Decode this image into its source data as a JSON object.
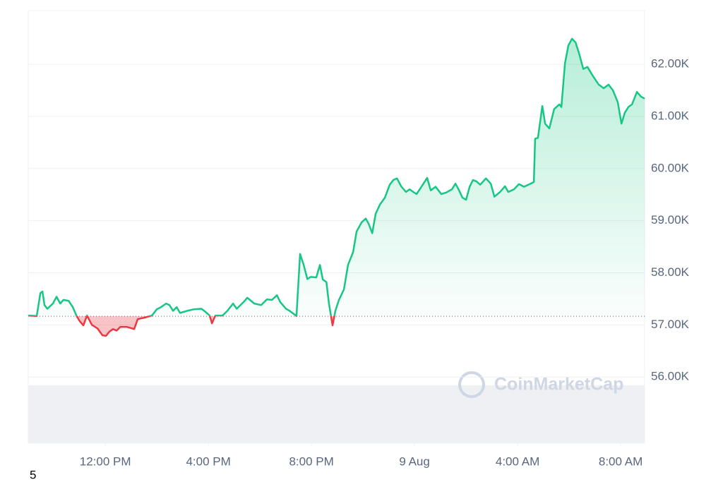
{
  "chart_data": {
    "type": "line",
    "watermark": "CoinMarketCap",
    "footer_text": "5",
    "x": [
      9.01,
      9.34,
      9.48,
      9.56,
      9.64,
      9.75,
      9.97,
      10.11,
      10.25,
      10.38,
      10.58,
      10.74,
      10.88,
      11.01,
      11.15,
      11.29,
      11.48,
      11.7,
      11.89,
      12.03,
      12.16,
      12.3,
      12.44,
      12.58,
      12.85,
      13.12,
      13.26,
      13.53,
      13.81,
      14.0,
      14.16,
      14.36,
      14.49,
      14.63,
      14.77,
      14.9,
      15.18,
      15.45,
      15.73,
      15.86,
      16.05,
      16.14,
      16.27,
      16.55,
      16.74,
      16.96,
      17.1,
      17.37,
      17.51,
      17.78,
      18.05,
      18.27,
      18.47,
      18.66,
      18.79,
      19.01,
      19.15,
      19.42,
      19.56,
      19.7,
      19.84,
      19.97,
      20.19,
      20.33,
      20.44,
      20.58,
      20.68,
      20.82,
      20.93,
      21.07,
      21.26,
      21.42,
      21.62,
      21.75,
      21.95,
      22.11,
      22.22,
      22.36,
      22.49,
      22.66,
      22.85,
      23.04,
      23.18,
      23.32,
      23.48,
      23.67,
      23.81,
      23.95,
      24.08,
      24.27,
      24.49,
      24.63,
      24.82,
      25.04,
      25.23,
      25.45,
      25.59,
      25.73,
      25.86,
      26.0,
      26.14,
      26.27,
      26.41,
      26.55,
      26.77,
      26.96,
      27.1,
      27.32,
      27.51,
      27.64,
      27.86,
      28.05,
      28.25,
      28.47,
      28.63,
      28.68,
      28.79,
      28.96,
      29.07,
      29.23,
      29.42,
      29.62,
      29.7,
      29.84,
      29.97,
      30.11,
      30.25,
      30.38,
      30.55,
      30.71,
      30.93,
      31.15,
      31.34,
      31.53,
      31.7,
      31.89,
      32.03,
      32.16,
      32.3,
      32.44,
      32.63,
      32.79,
      32.93
    ],
    "values": [
      57180,
      57170,
      57610,
      57640,
      57380,
      57310,
      57410,
      57540,
      57410,
      57480,
      57460,
      57340,
      57180,
      57070,
      56990,
      57180,
      57000,
      56930,
      56800,
      56790,
      56870,
      56920,
      56890,
      56960,
      56960,
      56920,
      57110,
      57140,
      57180,
      57300,
      57340,
      57410,
      57380,
      57270,
      57340,
      57230,
      57270,
      57300,
      57310,
      57260,
      57180,
      57030,
      57180,
      57180,
      57270,
      57410,
      57310,
      57440,
      57520,
      57410,
      57380,
      57490,
      57480,
      57570,
      57440,
      57310,
      57270,
      57170,
      58360,
      58150,
      57880,
      57920,
      57910,
      58150,
      57870,
      57820,
      57410,
      56990,
      57270,
      57480,
      57680,
      58150,
      58400,
      58790,
      58970,
      59040,
      58940,
      58760,
      59130,
      59310,
      59440,
      59690,
      59780,
      59810,
      59660,
      59550,
      59600,
      59550,
      59510,
      59650,
      59820,
      59580,
      59650,
      59510,
      59540,
      59600,
      59710,
      59580,
      59440,
      59400,
      59650,
      59780,
      59750,
      59690,
      59810,
      59710,
      59460,
      59550,
      59660,
      59550,
      59600,
      59700,
      59650,
      59700,
      59740,
      60570,
      60590,
      61200,
      60860,
      60770,
      61140,
      61230,
      61180,
      62020,
      62360,
      62490,
      62420,
      62220,
      61910,
      61950,
      61770,
      61610,
      61540,
      61610,
      61500,
      61270,
      60860,
      61070,
      61180,
      61230,
      61470,
      61380,
      61340
    ],
    "baseline": 57165,
    "up_color": "#16c784",
    "down_color": "#ea3943",
    "xlim": [
      9.01,
      32.93
    ],
    "xticks": [
      {
        "value": 12,
        "label": "12:00 PM"
      },
      {
        "value": 16,
        "label": "4:00 PM"
      },
      {
        "value": 20,
        "label": "8:00 PM"
      },
      {
        "value": 24,
        "label": "9 Aug"
      },
      {
        "value": 28,
        "label": "4:00 AM"
      },
      {
        "value": 32,
        "label": "8:00 AM"
      }
    ],
    "ylim": [
      54730,
      63030
    ],
    "yticks": [
      {
        "value": 56000,
        "label": "56.00K"
      },
      {
        "value": 57000,
        "label": "57.00K"
      },
      {
        "value": 58000,
        "label": "58.00K"
      },
      {
        "value": 59000,
        "label": "59.00K"
      },
      {
        "value": 60000,
        "label": "60.00K"
      },
      {
        "value": 61000,
        "label": "61.00K"
      },
      {
        "value": 62000,
        "label": "62.00K"
      }
    ],
    "grid": true
  }
}
